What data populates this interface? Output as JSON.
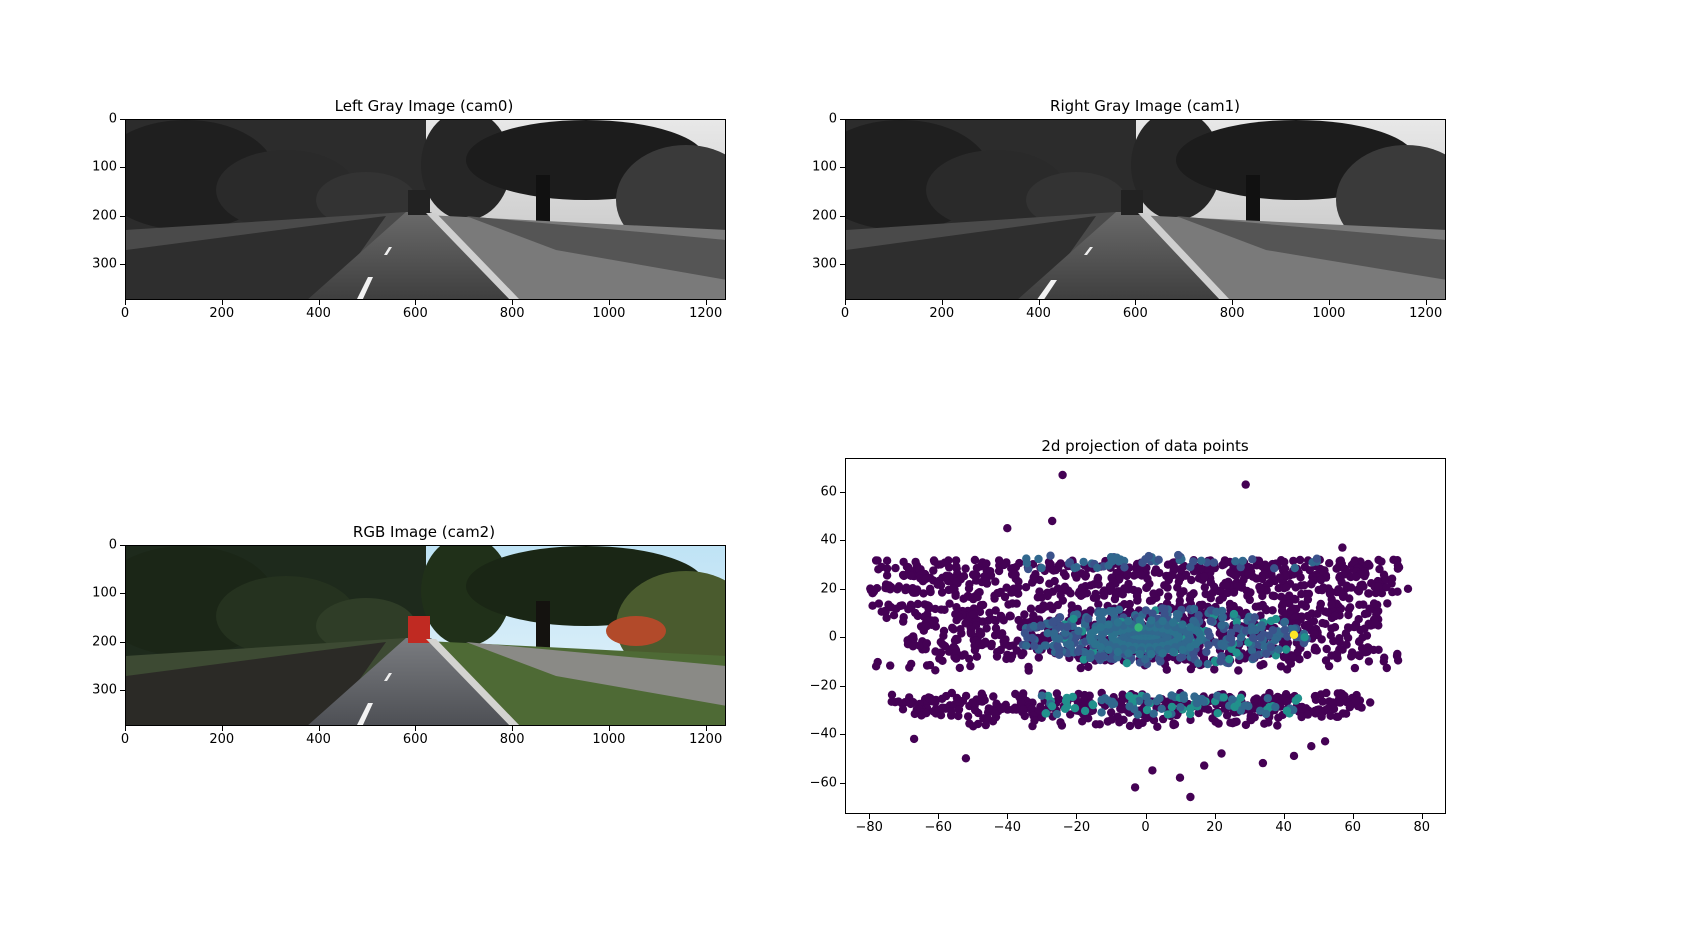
{
  "panels": {
    "cam0": {
      "title": "Left Gray Image (cam0)"
    },
    "cam1": {
      "title": "Right Gray Image (cam1)"
    },
    "cam2": {
      "title": "RGB Image (cam2)"
    }
  },
  "image_axes": {
    "x_ticks": [
      "0",
      "200",
      "400",
      "600",
      "800",
      "1000",
      "1200"
    ],
    "x_tick_values": [
      0,
      200,
      400,
      600,
      800,
      1000,
      1200
    ],
    "y_ticks": [
      "0",
      "100",
      "200",
      "300"
    ],
    "y_tick_values": [
      0,
      100,
      200,
      300
    ],
    "xlim": [
      0,
      1242
    ],
    "ylim": [
      0,
      375
    ]
  },
  "chart_data": {
    "type": "scatter",
    "title": "2d projection of data points",
    "xlabel": "",
    "ylabel": "",
    "xlim": [
      -87,
      87
    ],
    "ylim": [
      -73,
      74
    ],
    "x_ticks": [
      -80,
      -60,
      -40,
      -20,
      0,
      20,
      40,
      60,
      80
    ],
    "y_ticks": [
      -60,
      -40,
      -20,
      0,
      20,
      40,
      60
    ],
    "colormap": "viridis",
    "colors": {
      "low": "#440154",
      "mid": "#31688e",
      "teal": "#35b779",
      "high": "#fde725"
    },
    "bands_y": [
      30,
      24,
      20,
      12,
      8,
      4,
      0,
      -4,
      -8,
      -28,
      -32
    ],
    "outliers": [
      {
        "x": -24,
        "y": 67
      },
      {
        "x": 29,
        "y": 63
      },
      {
        "x": -27,
        "y": 48
      },
      {
        "x": -40,
        "y": 45
      },
      {
        "x": -3,
        "y": -62
      },
      {
        "x": 13,
        "y": -66
      },
      {
        "x": 2,
        "y": -55
      },
      {
        "x": 10,
        "y": -58
      },
      {
        "x": -52,
        "y": -50
      },
      {
        "x": -67,
        "y": -42
      },
      {
        "x": 34,
        "y": -52
      },
      {
        "x": 43,
        "y": -49
      },
      {
        "x": 48,
        "y": -45
      },
      {
        "x": 52,
        "y": -43
      },
      {
        "x": 22,
        "y": -48
      },
      {
        "x": 17,
        "y": -53
      },
      {
        "x": -78,
        "y": -12
      },
      {
        "x": 69,
        "y": -10
      },
      {
        "x": 76,
        "y": 20
      },
      {
        "x": -79,
        "y": 13
      },
      {
        "x": 57,
        "y": 37
      }
    ]
  }
}
